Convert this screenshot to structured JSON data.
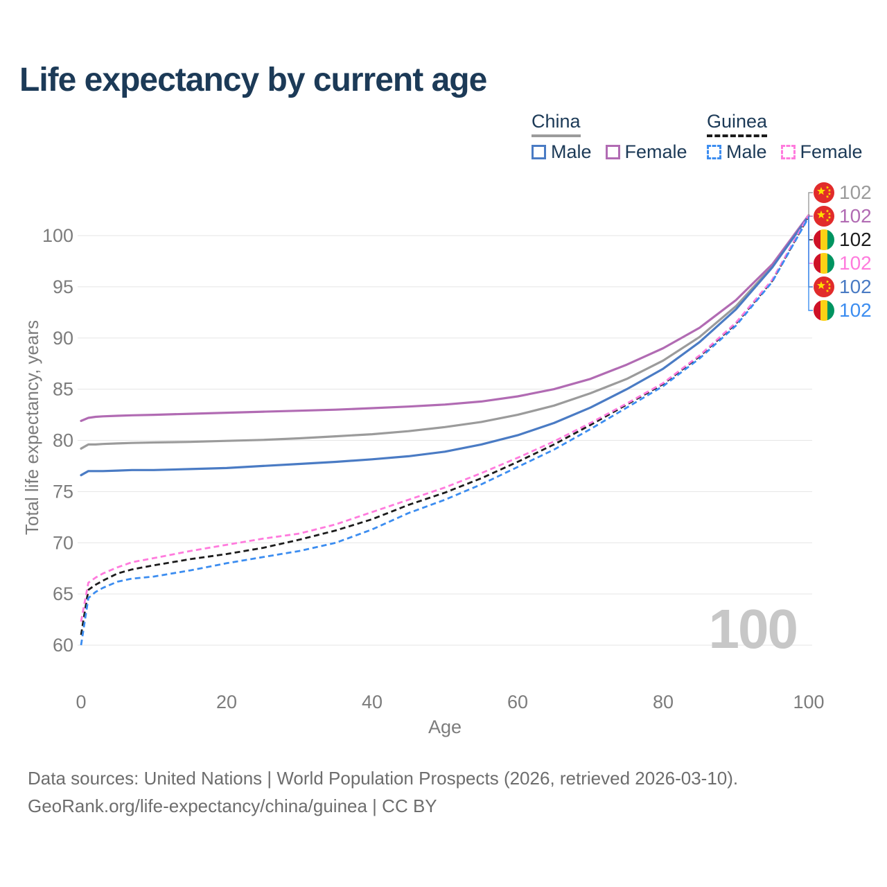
{
  "title": "Life expectancy by current age",
  "watermark": "100",
  "legend": {
    "groups": [
      {
        "label": "China",
        "style": "solid",
        "underline_color": "#9b9b9b"
      },
      {
        "label": "Guinea",
        "style": "dashed",
        "underline_color": "#1c1c1c"
      }
    ],
    "items": [
      {
        "label": "Male",
        "series": "china_male"
      },
      {
        "label": "Female",
        "series": "china_female"
      },
      {
        "label": "Male",
        "series": "guinea_male"
      },
      {
        "label": "Female",
        "series": "guinea_female"
      }
    ]
  },
  "colors": {
    "title_text": "#1c3a57",
    "axis_text": "#7c7c7c",
    "gridline": "#e5e5e5",
    "watermark": "#c7c7c7",
    "footer_text": "#6d6d6d"
  },
  "chart_data": {
    "type": "line",
    "title": "Life expectancy by current age",
    "xlabel": "Age",
    "ylabel": "Total life expectancy, years",
    "xlim": [
      0,
      100
    ],
    "ylim": [
      60,
      102
    ],
    "xticks": [
      0,
      20,
      40,
      60,
      80,
      100
    ],
    "yticks": [
      60,
      65,
      70,
      75,
      80,
      85,
      90,
      95,
      100
    ],
    "grid": "horizontal",
    "legend_position": "top-right",
    "x_ages": [
      0,
      1,
      2,
      3,
      5,
      7,
      10,
      15,
      20,
      25,
      30,
      35,
      40,
      45,
      50,
      55,
      60,
      65,
      70,
      75,
      80,
      85,
      90,
      95,
      100
    ],
    "series": [
      {
        "id": "china_total",
        "name": "China (both sexes)",
        "group": "China",
        "style": "solid",
        "color": "#9b9b9b",
        "values": [
          79.2,
          79.6,
          79.6,
          79.65,
          79.7,
          79.75,
          79.8,
          79.85,
          79.95,
          80.05,
          80.2,
          80.4,
          80.6,
          80.9,
          81.3,
          81.8,
          82.5,
          83.4,
          84.6,
          86.0,
          87.8,
          90.1,
          93.1,
          97.0,
          101.9
        ]
      },
      {
        "id": "china_female",
        "name": "China Female",
        "group": "China",
        "style": "solid",
        "color": "#b16bb3",
        "values": [
          81.9,
          82.2,
          82.3,
          82.35,
          82.4,
          82.45,
          82.5,
          82.6,
          82.7,
          82.8,
          82.9,
          83.0,
          83.15,
          83.3,
          83.5,
          83.8,
          84.3,
          85.0,
          86.0,
          87.4,
          89.0,
          91.0,
          93.7,
          97.2,
          102.0
        ]
      },
      {
        "id": "china_male",
        "name": "China Male",
        "group": "China",
        "style": "solid",
        "color": "#4a7bc4",
        "values": [
          76.6,
          77.0,
          77.0,
          77.0,
          77.05,
          77.1,
          77.1,
          77.2,
          77.3,
          77.5,
          77.7,
          77.9,
          78.15,
          78.45,
          78.9,
          79.6,
          80.5,
          81.7,
          83.2,
          85.0,
          87.0,
          89.6,
          92.8,
          96.9,
          101.9
        ]
      },
      {
        "id": "guinea_total",
        "name": "Guinea (both sexes)",
        "group": "Guinea",
        "style": "dashed",
        "color": "#1c1c1c",
        "values": [
          61.0,
          65.4,
          65.9,
          66.3,
          67.0,
          67.4,
          67.8,
          68.4,
          68.9,
          69.5,
          70.3,
          71.2,
          72.3,
          73.7,
          74.9,
          76.3,
          77.9,
          79.6,
          81.5,
          83.5,
          85.5,
          88.2,
          91.4,
          95.6,
          101.9
        ]
      },
      {
        "id": "guinea_female",
        "name": "Guinea Female",
        "group": "Guinea",
        "style": "dashed",
        "color": "#ff7bdd",
        "values": [
          62.3,
          66.1,
          66.6,
          67.0,
          67.6,
          68.1,
          68.5,
          69.2,
          69.8,
          70.4,
          70.9,
          71.8,
          73.0,
          74.2,
          75.4,
          76.8,
          78.3,
          79.9,
          81.7,
          83.6,
          85.6,
          88.3,
          91.5,
          95.7,
          102.0
        ]
      },
      {
        "id": "guinea_male",
        "name": "Guinea Male",
        "group": "Guinea",
        "style": "dashed",
        "color": "#3c8df0",
        "values": [
          60.0,
          64.6,
          65.2,
          65.6,
          66.2,
          66.5,
          66.7,
          67.3,
          68.0,
          68.6,
          69.2,
          70.0,
          71.3,
          72.9,
          74.2,
          75.7,
          77.4,
          79.1,
          81.1,
          83.2,
          85.3,
          88.0,
          91.2,
          95.5,
          101.8
        ]
      }
    ],
    "end_labels": [
      {
        "flag": "china",
        "series": "china_total",
        "value": "102"
      },
      {
        "flag": "china",
        "series": "china_female",
        "value": "102"
      },
      {
        "flag": "guinea",
        "series": "guinea_total",
        "value": "102"
      },
      {
        "flag": "guinea",
        "series": "guinea_female",
        "value": "102"
      },
      {
        "flag": "china",
        "series": "china_male",
        "value": "102"
      },
      {
        "flag": "guinea",
        "series": "guinea_male",
        "value": "102"
      }
    ]
  },
  "footer": {
    "line1": "Data sources: United Nations | World Population Prospects (2026, retrieved 2026-03-10).",
    "line2": "GeoRank.org/life-expectancy/china/guinea | CC BY"
  }
}
